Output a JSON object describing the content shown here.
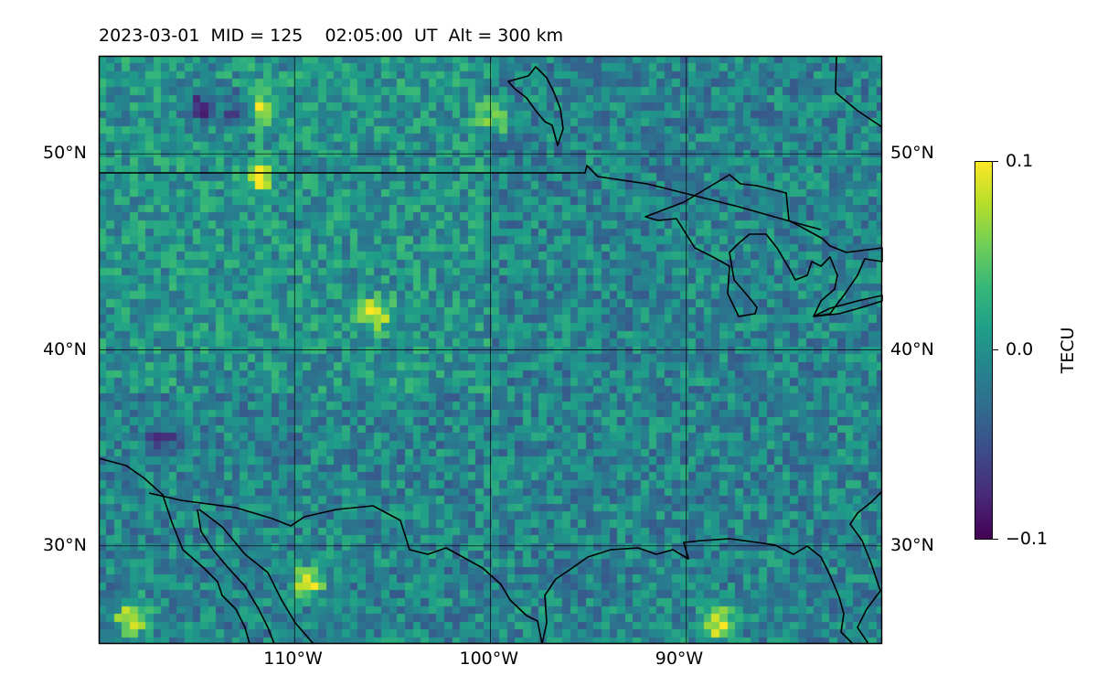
{
  "title": "2023-03-01  MID = 125    02:05:00  UT  Alt = 300 km",
  "map": {
    "extent": {
      "lon_min": -120,
      "lon_max": -80,
      "lat_min": 25,
      "lat_max": 55
    },
    "gridlines": {
      "lons": [
        -110,
        -100,
        -90
      ],
      "lats": [
        30,
        40,
        50
      ]
    },
    "lon_labels": [
      "110°W",
      "100°W",
      "90°W"
    ],
    "lat_labels": [
      "30°N",
      "40°N",
      "50°N"
    ]
  },
  "colorbar": {
    "label": "TECU",
    "colormap": "viridis",
    "min": -0.1,
    "max": 0.1,
    "tick_labels": [
      "0.1",
      "0.0",
      "−0.1"
    ]
  },
  "chart_data": {
    "type": "heatmap",
    "title": "2023-03-01  MID = 125    02:05:00  UT  Alt = 300 km",
    "quantity": "TECU",
    "vrange": [
      -0.1,
      0.1
    ],
    "xlim": [
      -120,
      -80
    ],
    "ylim": [
      25,
      55
    ],
    "base_value": -0.01,
    "hotspots": [
      {
        "lon": -118.5,
        "lat": 26.5,
        "value": 0.1
      },
      {
        "lon": -109.5,
        "lat": 28.3,
        "value": 0.1
      },
      {
        "lon": -88.5,
        "lat": 26.2,
        "value": 0.1
      },
      {
        "lon": -106.0,
        "lat": 42.0,
        "value": 0.09
      },
      {
        "lon": -112.0,
        "lat": 49.0,
        "value": 0.09
      },
      {
        "lon": -112.0,
        "lat": 52.5,
        "value": 0.07
      },
      {
        "lon": -100.0,
        "lat": 52.0,
        "value": 0.06
      },
      {
        "lon": -115.0,
        "lat": 52.5,
        "value": -0.09
      },
      {
        "lon": -113.0,
        "lat": 52.5,
        "value": -0.08
      },
      {
        "lon": -117.0,
        "lat": 35.5,
        "value": -0.07
      }
    ]
  }
}
